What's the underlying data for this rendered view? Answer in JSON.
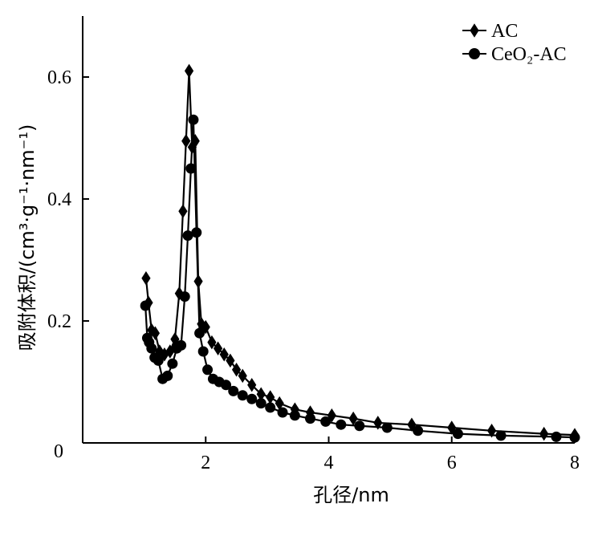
{
  "chart_data": {
    "type": "line",
    "xlabel": "孔径/nm",
    "ylabel": "吸附体积/(cm³·g⁻¹·nm⁻¹)",
    "xlim": [
      0,
      8
    ],
    "ylim": [
      0,
      0.7
    ],
    "xticks": [
      "2",
      "4",
      "6",
      "8"
    ],
    "yticks": [
      "0.2",
      "0.4",
      "0.6"
    ],
    "origin_label": "0",
    "grid": false,
    "legend_position": "top-right",
    "series": [
      {
        "name": "AC",
        "marker": "diamond",
        "color": "#000000",
        "x": [
          1.03,
          1.07,
          1.12,
          1.18,
          1.25,
          1.33,
          1.42,
          1.5,
          1.57,
          1.63,
          1.68,
          1.73,
          1.78,
          1.83,
          1.88,
          1.93,
          2.0,
          2.1,
          2.2,
          2.3,
          2.4,
          2.5,
          2.6,
          2.75,
          2.9,
          3.05,
          3.2,
          3.45,
          3.7,
          4.05,
          4.4,
          4.8,
          5.35,
          6.0,
          6.65,
          7.5,
          8.0
        ],
        "y": [
          0.27,
          0.23,
          0.185,
          0.18,
          0.15,
          0.145,
          0.15,
          0.17,
          0.245,
          0.38,
          0.495,
          0.61,
          0.485,
          0.495,
          0.265,
          0.195,
          0.19,
          0.165,
          0.155,
          0.145,
          0.135,
          0.12,
          0.11,
          0.095,
          0.08,
          0.075,
          0.065,
          0.055,
          0.05,
          0.045,
          0.04,
          0.033,
          0.03,
          0.025,
          0.02,
          0.015,
          0.013
        ]
      },
      {
        "name": "CeO₂-AC",
        "marker": "circle",
        "color": "#000000",
        "x": [
          1.02,
          1.05,
          1.08,
          1.12,
          1.17,
          1.23,
          1.3,
          1.38,
          1.46,
          1.53,
          1.6,
          1.66,
          1.71,
          1.76,
          1.8,
          1.85,
          1.9,
          1.96,
          2.03,
          2.12,
          2.22,
          2.33,
          2.45,
          2.6,
          2.75,
          2.9,
          3.05,
          3.25,
          3.45,
          3.7,
          3.95,
          4.2,
          4.5,
          4.95,
          5.45,
          6.1,
          6.8,
          7.7,
          8.0
        ],
        "y": [
          0.225,
          0.172,
          0.165,
          0.155,
          0.14,
          0.135,
          0.105,
          0.11,
          0.13,
          0.155,
          0.16,
          0.24,
          0.34,
          0.45,
          0.53,
          0.345,
          0.18,
          0.15,
          0.12,
          0.105,
          0.1,
          0.095,
          0.085,
          0.078,
          0.072,
          0.065,
          0.058,
          0.05,
          0.045,
          0.04,
          0.035,
          0.03,
          0.028,
          0.025,
          0.02,
          0.015,
          0.012,
          0.01,
          0.009
        ]
      }
    ]
  }
}
